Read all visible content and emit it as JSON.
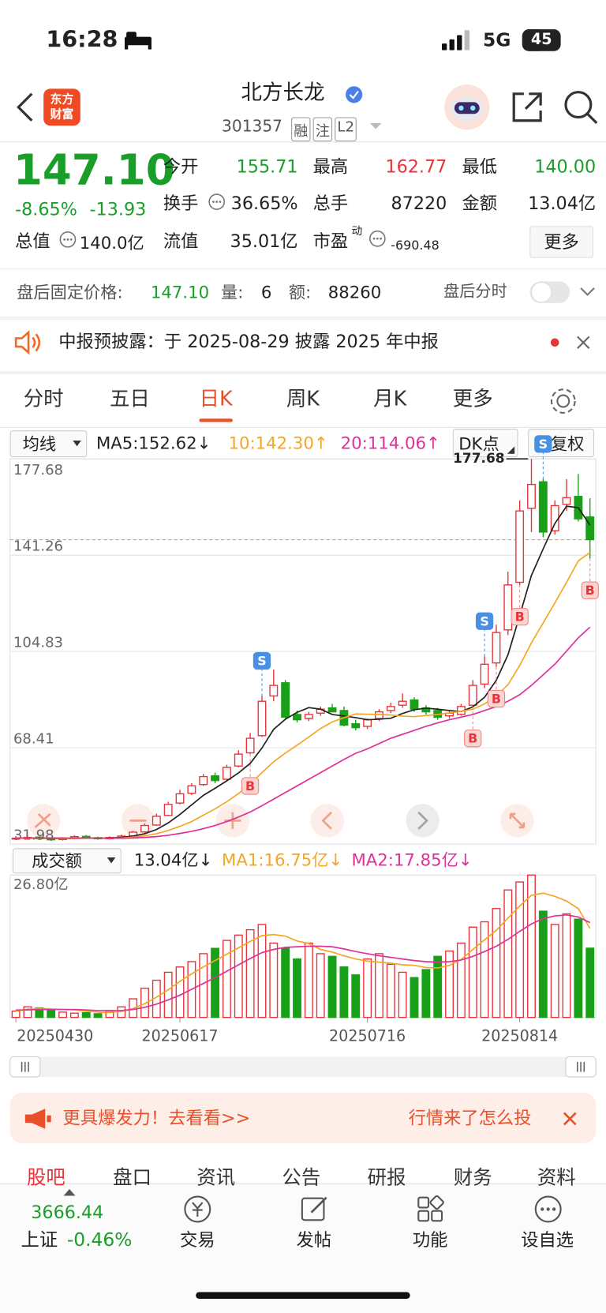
{
  "status": {
    "time": "16:28",
    "network": "5G",
    "battery": "45"
  },
  "header": {
    "logo": [
      "东方",
      "财富"
    ],
    "name": "北方长龙",
    "code": "301357",
    "tags": [
      "融",
      "注",
      "L2"
    ]
  },
  "quote": {
    "price": "147.10",
    "change_pct": "-8.65%",
    "change": "-13.93",
    "fields": [
      {
        "label": "今开",
        "value": "155.71"
      },
      {
        "label": "最高",
        "value": "162.77"
      },
      {
        "label": "最低",
        "value": "140.00"
      },
      {
        "label": "换手",
        "value": "36.65%"
      },
      {
        "label": "总手",
        "value": "87220"
      },
      {
        "label": "金额",
        "value": "13.04亿"
      },
      {
        "label": "总值",
        "value": "140.0亿"
      },
      {
        "label": "流值",
        "value": "35.01亿"
      },
      {
        "label": "市盈",
        "superscript": "动",
        "value": "-690.48"
      }
    ],
    "more": "更多"
  },
  "after_hours": {
    "label": "盘后固定价格:",
    "price": "147.10",
    "volume_label": "量:",
    "volume": "6",
    "amount_label": "额:",
    "amount": "88260",
    "toggle_label": "盘后分时"
  },
  "notice": "中报预披露：于 2025-08-29 披露 2025 年中报",
  "tabs": {
    "items": [
      "分时",
      "五日",
      "日K",
      "周K",
      "月K",
      "更多"
    ],
    "active": 2
  },
  "chart_data": {
    "type": "candlestick",
    "toolbar": {
      "indicator": "均线",
      "dk": "DK点",
      "adjust": "前复权"
    },
    "legend": [
      "MA5:152.62↓",
      "10:142.30↑",
      "20:114.06↑"
    ],
    "xlim": [
      -0.5,
      49.5
    ],
    "xticks": [
      {
        "value": 0,
        "label": "20250430"
      },
      {
        "value": 14,
        "label": "20250617"
      },
      {
        "value": 30,
        "label": "20250716"
      },
      {
        "value": 43,
        "label": "20250814"
      }
    ],
    "ylim": [
      31.98,
      177.68
    ],
    "yticks": [
      31.98,
      68.41,
      104.83,
      141.26,
      177.68
    ],
    "grid": true,
    "up_color": "#e8333a",
    "down_color": "#18a018",
    "open": [
      34.0,
      34.1,
      34.6,
      34.2,
      33.7,
      34.2,
      34.9,
      34.4,
      34.0,
      34.4,
      35.1,
      36.6,
      39.2,
      42.8,
      47.5,
      51.2,
      54.5,
      57.8,
      56.5,
      61.5,
      66.5,
      73.0,
      88.0,
      93.0,
      81.0,
      79.5,
      81.5,
      83.5,
      82.5,
      77.5,
      76.5,
      79.5,
      82.5,
      84.5,
      86.5,
      83.5,
      82.5,
      80.5,
      81.0,
      84.5,
      92.5,
      100.5,
      113.0,
      131.0,
      159.0,
      169.0,
      150.5,
      160.5,
      163.5,
      155.71
    ],
    "high": [
      35.0,
      35.2,
      35.0,
      34.6,
      34.6,
      35.3,
      35.4,
      34.8,
      34.9,
      35.6,
      37.0,
      39.8,
      43.5,
      48.0,
      52.5,
      55.0,
      58.5,
      59.0,
      62.0,
      67.5,
      74.0,
      88.0,
      98.0,
      94.0,
      82.5,
      82.0,
      84.0,
      85.0,
      84.0,
      79.0,
      79.5,
      83.0,
      85.5,
      89.0,
      87.5,
      84.5,
      83.5,
      82.5,
      85.0,
      94.0,
      103.0,
      115.0,
      135.0,
      162.0,
      177.68,
      170.0,
      162.0,
      170.0,
      172.0,
      162.77
    ],
    "low": [
      33.5,
      33.8,
      33.6,
      33.2,
      33.3,
      34.0,
      34.0,
      33.6,
      33.7,
      34.2,
      35.0,
      36.2,
      38.8,
      42.5,
      47.0,
      50.5,
      54.0,
      55.0,
      56.0,
      61.0,
      66.0,
      72.5,
      86.0,
      79.0,
      78.0,
      78.5,
      80.5,
      82.0,
      76.5,
      75.0,
      75.5,
      78.5,
      81.5,
      83.5,
      82.0,
      81.0,
      79.0,
      79.5,
      80.5,
      84.0,
      91.0,
      99.0,
      111.0,
      130.0,
      150.0,
      148.0,
      149.0,
      158.0,
      154.0,
      140.0
    ],
    "close": [
      34.2,
      34.5,
      34.0,
      33.6,
      34.1,
      34.8,
      34.3,
      34.0,
      34.5,
      35.0,
      36.5,
      39.0,
      42.5,
      47.0,
      51.0,
      54.0,
      57.5,
      56.0,
      61.0,
      66.0,
      72.0,
      86.0,
      92.0,
      80.0,
      79.0,
      81.0,
      83.0,
      82.0,
      77.0,
      76.0,
      79.0,
      82.0,
      84.0,
      86.0,
      83.0,
      82.0,
      80.0,
      81.5,
      84.0,
      92.0,
      100.0,
      112.0,
      130.0,
      158.0,
      168.0,
      150.0,
      160.0,
      163.0,
      155.0,
      147.1
    ],
    "ma": [
      {
        "name": "MA5",
        "color": "#222222",
        "values": [
          34.2,
          34.3,
          34.2,
          34.1,
          34.1,
          34.2,
          34.2,
          34.2,
          34.3,
          34.5,
          35.0,
          35.9,
          37.5,
          40.0,
          43.2,
          46.8,
          50.4,
          53.1,
          55.9,
          58.9,
          62.5,
          68.3,
          75.4,
          79.2,
          81.8,
          83.6,
          83.0,
          81.0,
          80.4,
          79.8,
          79.0,
          79.2,
          79.6,
          81.4,
          82.8,
          83.4,
          83.0,
          82.5,
          82.1,
          83.9,
          87.5,
          93.9,
          103.6,
          118.4,
          133.6,
          143.6,
          153.2,
          159.8,
          159.2,
          152.62
        ]
      },
      {
        "name": "MA10",
        "color": "#f5a623",
        "values": [
          34.2,
          34.2,
          34.2,
          34.2,
          34.1,
          34.1,
          34.2,
          34.2,
          34.2,
          34.3,
          34.6,
          35.1,
          35.9,
          37.1,
          38.7,
          40.5,
          42.9,
          45.3,
          48.0,
          51.1,
          54.8,
          59.0,
          63.1,
          66.4,
          69.4,
          72.5,
          75.7,
          78.2,
          79.8,
          81.2,
          81.1,
          81.0,
          80.8,
          80.4,
          80.2,
          80.6,
          81.0,
          81.6,
          82.2,
          83.0,
          85.0,
          88.0,
          92.3,
          99.5,
          108.1,
          115.6,
          123.2,
          131.0,
          139.1,
          142.3
        ]
      },
      {
        "name": "MA20",
        "color": "#e0309a",
        "values": [
          34.3,
          34.3,
          34.3,
          34.3,
          34.3,
          34.2,
          34.2,
          34.2,
          34.2,
          34.2,
          34.3,
          34.5,
          34.8,
          35.3,
          36.0,
          36.8,
          37.8,
          39.0,
          40.5,
          42.2,
          44.1,
          46.5,
          49.0,
          51.5,
          54.0,
          56.5,
          59.0,
          61.5,
          64.0,
          66.3,
          68.0,
          70.0,
          72.0,
          73.5,
          75.0,
          76.5,
          77.8,
          79.0,
          80.0,
          81.0,
          82.5,
          84.0,
          86.0,
          88.5,
          92.0,
          96.0,
          100.0,
          105.0,
          110.0,
          114.06
        ]
      }
    ],
    "markers": [
      {
        "label": "B",
        "x": 20
      },
      {
        "label": "S",
        "x": 21
      },
      {
        "label": "B",
        "x": 39
      },
      {
        "label": "S",
        "x": 40
      },
      {
        "label": "B",
        "x": 41
      },
      {
        "label": "B",
        "x": 43
      },
      {
        "label": "S",
        "x": 45
      },
      {
        "label": "B",
        "x": 49
      }
    ],
    "volume": {
      "indicator": "成交额",
      "legend": [
        "13.04亿↓",
        "MA1:16.75亿↓",
        "MA2:17.85亿↓"
      ],
      "ylim": [
        0,
        26.8
      ],
      "yticks": [
        {
          "value": 26.8,
          "label": "26.80亿"
        }
      ],
      "values": [
        1.2,
        2.0,
        1.8,
        1.5,
        1.0,
        0.8,
        0.9,
        0.7,
        1.2,
        2.0,
        3.5,
        5.5,
        7.0,
        8.5,
        9.5,
        10.5,
        12.0,
        13.0,
        14.5,
        15.5,
        16.5,
        17.5,
        14.0,
        13.0,
        11.0,
        14.0,
        12.0,
        11.5,
        9.5,
        8.0,
        11.0,
        12.0,
        10.0,
        8.5,
        7.5,
        9.0,
        11.5,
        12.5,
        14.0,
        17.0,
        18.0,
        20.5,
        24.0,
        25.5,
        26.8,
        20.0,
        17.5,
        19.5,
        18.5,
        13.04
      ],
      "series": [
        {
          "name": "MA1",
          "color": "#f5a623",
          "values": [
            1.2,
            1.6,
            1.7,
            1.6,
            1.5,
            1.4,
            1.2,
            1.0,
            0.9,
            1.1,
            1.7,
            2.6,
            3.8,
            5.2,
            6.8,
            8.2,
            9.5,
            10.7,
            11.9,
            13.1,
            14.3,
            15.4,
            15.6,
            15.3,
            14.4,
            13.9,
            12.8,
            12.3,
            11.6,
            11.0,
            10.6,
            10.4,
            10.2,
            9.9,
            9.8,
            9.4,
            9.3,
            9.8,
            10.9,
            12.8,
            14.6,
            16.4,
            18.7,
            21.0,
            23.0,
            23.4,
            22.8,
            21.9,
            20.5,
            16.75
          ]
        },
        {
          "name": "MA2",
          "color": "#e0309a",
          "values": [
            1.4,
            1.4,
            1.5,
            1.5,
            1.5,
            1.5,
            1.4,
            1.3,
            1.3,
            1.3,
            1.5,
            1.9,
            2.5,
            3.3,
            4.2,
            5.3,
            6.4,
            7.5,
            8.7,
            9.9,
            11.1,
            12.2,
            12.8,
            13.2,
            13.3,
            13.4,
            13.4,
            13.3,
            12.9,
            12.4,
            12.0,
            11.6,
            11.3,
            11.0,
            10.7,
            10.5,
            10.4,
            10.5,
            10.8,
            11.5,
            12.4,
            13.4,
            14.7,
            16.2,
            17.6,
            18.6,
            19.1,
            19.3,
            18.9,
            17.85
          ]
        }
      ]
    }
  },
  "banner": {
    "text": "更具爆发力！去看看>>",
    "ticker": "行情来了怎么投"
  },
  "section_tabs": [
    "股吧",
    "盘口",
    "资讯",
    "公告",
    "研报",
    "财务",
    "资料"
  ],
  "bottom_nav": {
    "index_value": "3666.44",
    "index_name": "上证",
    "index_change": "-0.46%",
    "items": [
      "交易",
      "发帖",
      "功能",
      "设自选"
    ]
  }
}
